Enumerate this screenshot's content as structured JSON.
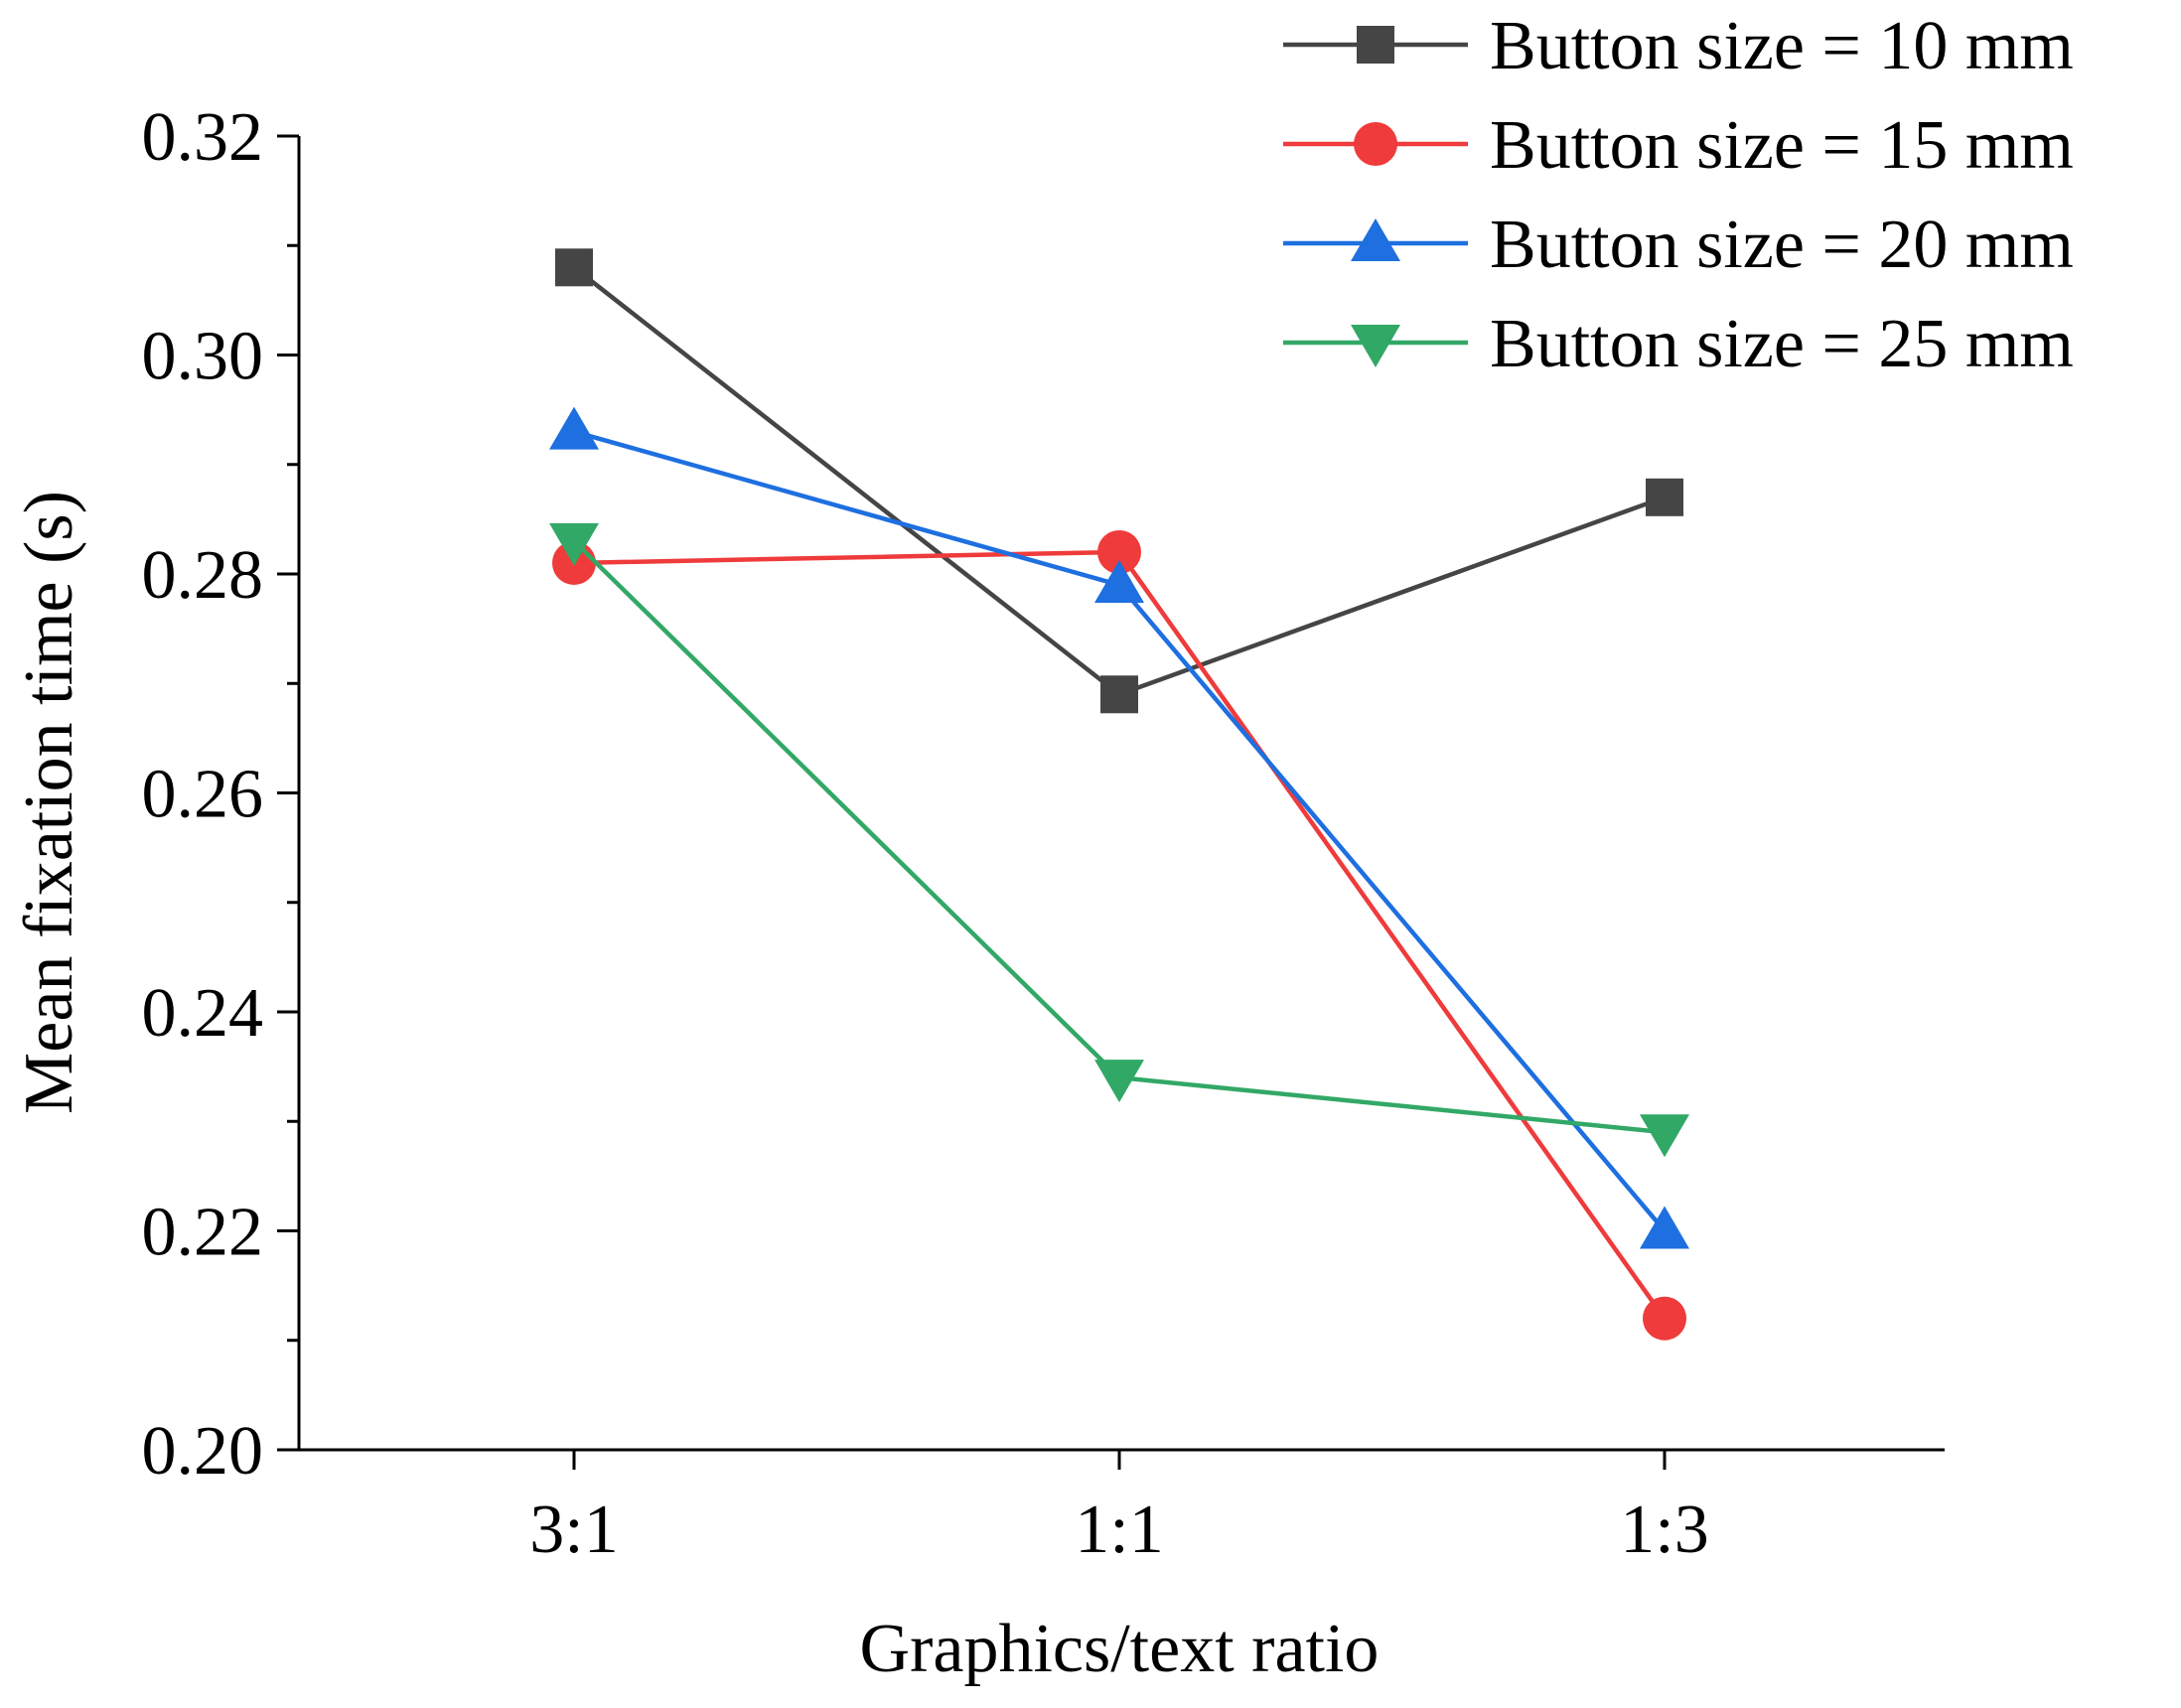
{
  "chart_data": {
    "type": "line",
    "title": "",
    "xlabel": "Graphics/text ratio",
    "ylabel": "Mean fixation time (s)",
    "categories": [
      "3:1",
      "1:1",
      "1:3"
    ],
    "ylim": [
      0.2,
      0.32
    ],
    "yticks": [
      0.2,
      0.22,
      0.24,
      0.26,
      0.28,
      0.3,
      0.32
    ],
    "ytick_labels": [
      "0.20",
      "0.22",
      "0.24",
      "0.26",
      "0.28",
      "0.30",
      "0.32"
    ],
    "grid": false,
    "legend_position": "top-right",
    "series": [
      {
        "name": "Button size = 10 mm",
        "marker": "square",
        "color": "#454545",
        "values": [
          0.308,
          0.269,
          0.287
        ]
      },
      {
        "name": "Button size = 15 mm",
        "marker": "circle",
        "color": "#ef3b3b",
        "values": [
          0.281,
          0.282,
          0.212
        ]
      },
      {
        "name": "Button size = 20 mm",
        "marker": "triangle-up",
        "color": "#1e6fe0",
        "values": [
          0.293,
          0.279,
          0.22
        ]
      },
      {
        "name": "Button size = 25 mm",
        "marker": "triangle-down",
        "color": "#32a866",
        "values": [
          0.283,
          0.234,
          0.229
        ]
      }
    ]
  }
}
